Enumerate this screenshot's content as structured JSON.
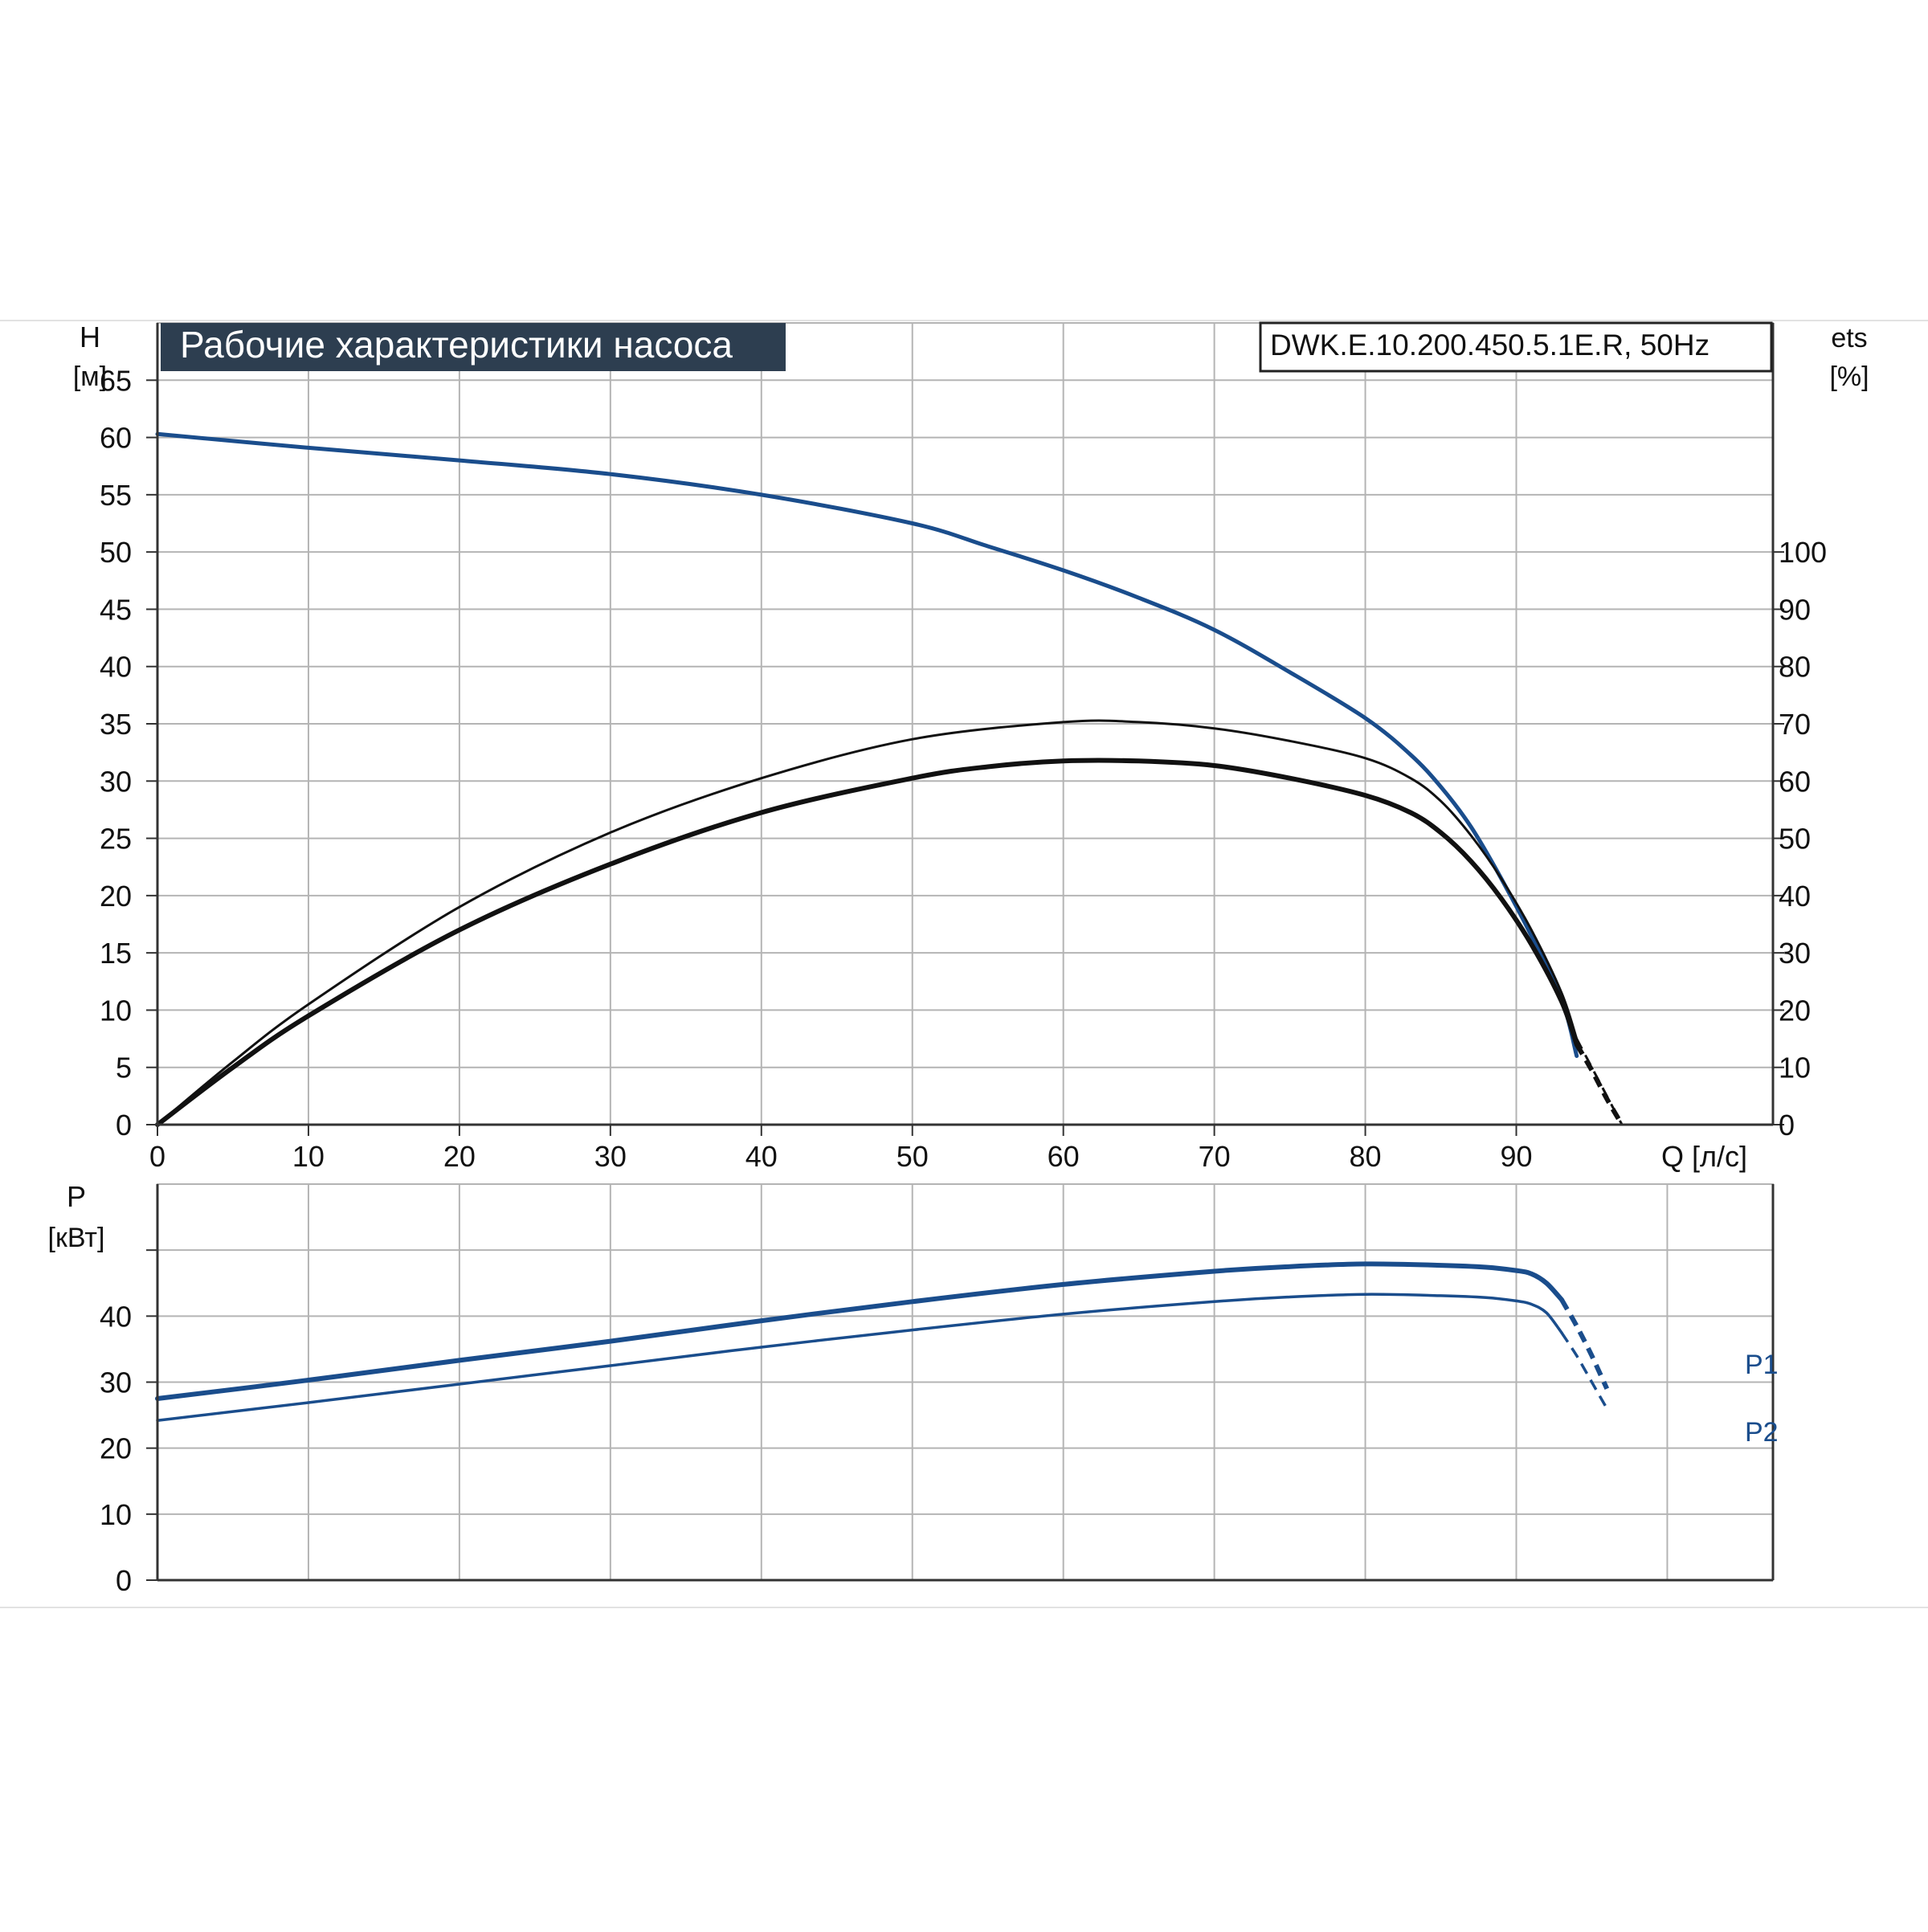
{
  "title": "Рабочие характеристики насоса",
  "model": "DWK.E.10.200.450.5.1E.R, 50Hz",
  "colors": {
    "blue": "#1a4d8c",
    "black": "#111111",
    "grid": "#b4b4b4",
    "title_bg": "#2d3e50",
    "title_text": "#ffffff",
    "hline": "#dddddd"
  },
  "chart_data": [
    {
      "type": "line",
      "name": "head-efficiency",
      "x_label": "Q [л/с]",
      "x_ticks": [
        0,
        10,
        20,
        30,
        40,
        50,
        60,
        70,
        80,
        90
      ],
      "xlim": [
        0,
        107
      ],
      "y_left": {
        "label_line1": "H",
        "label_line2": "[м]",
        "range": [
          0,
          70
        ],
        "ticks": [
          0,
          5,
          10,
          15,
          20,
          25,
          30,
          35,
          40,
          45,
          50,
          55,
          60,
          65
        ]
      },
      "y_right": {
        "label_line1": "ets",
        "label_line2": "[%]",
        "range": [
          0,
          140
        ],
        "ticks": [
          0,
          10,
          20,
          30,
          40,
          50,
          60,
          70,
          80,
          90,
          100
        ]
      },
      "grid": true,
      "series": [
        {
          "axis": "left",
          "color": "#1a4d8c",
          "width": 5,
          "x": [
            0,
            10,
            20,
            30,
            40,
            50,
            55,
            60,
            65,
            70,
            75,
            80,
            83,
            85,
            87,
            89,
            91,
            93,
            94
          ],
          "y": [
            60.3,
            59.1,
            58.0,
            56.8,
            55.0,
            52.5,
            50.5,
            48.4,
            46.0,
            43.2,
            39.5,
            35.5,
            32.3,
            29.5,
            26.0,
            21.5,
            16.5,
            11.0,
            6.0
          ],
          "dashed_x": [],
          "dashed_y": []
        },
        {
          "axis": "right",
          "color": "#111111",
          "width": 3,
          "x": [
            0,
            5,
            10,
            20,
            30,
            40,
            50,
            60,
            65,
            70,
            75,
            80,
            83,
            85,
            87,
            89,
            91,
            93,
            94
          ],
          "y": [
            0,
            11,
            21,
            38,
            51,
            60.5,
            67.3,
            70.3,
            70.3,
            69.2,
            67.0,
            64.0,
            60.5,
            56.5,
            50.5,
            43.0,
            34.0,
            23.0,
            15.0
          ],
          "dashed_x": [
            94,
            95,
            96,
            97
          ],
          "dashed_y": [
            15,
            10,
            5,
            0
          ]
        },
        {
          "axis": "right",
          "color": "#111111",
          "width": 6,
          "x": [
            0,
            5,
            10,
            20,
            30,
            40,
            50,
            55,
            60,
            65,
            70,
            75,
            80,
            83,
            85,
            87,
            89,
            91,
            93,
            94
          ],
          "y": [
            0,
            10,
            19,
            34,
            45.5,
            54.5,
            60.5,
            62.5,
            63.5,
            63.5,
            62.7,
            60.5,
            57.5,
            54.5,
            51.0,
            46.0,
            39.5,
            31.5,
            21.5,
            14.0
          ],
          "dashed_x": [
            94,
            95,
            96,
            97
          ],
          "dashed_y": [
            14,
            9.5,
            4.5,
            0
          ]
        }
      ]
    },
    {
      "type": "line",
      "name": "power",
      "y_left": {
        "label_line1": "P",
        "label_line2": "[кВт]",
        "range": [
          0,
          60
        ],
        "ticks": [
          0,
          10,
          20,
          30,
          40,
          50
        ],
        "labels": [
          "0",
          "10",
          "20",
          "30",
          "40",
          ""
        ]
      },
      "xlim": [
        0,
        107
      ],
      "x_ticks": [
        0,
        10,
        20,
        30,
        40,
        50,
        60,
        70,
        80,
        90,
        100
      ],
      "grid": true,
      "series": [
        {
          "name": "P1",
          "color": "#1a4d8c",
          "width": 6,
          "x": [
            0,
            10,
            20,
            30,
            40,
            50,
            60,
            70,
            75,
            80,
            85,
            88,
            90,
            91,
            92,
            93
          ],
          "y": [
            27.5,
            30.3,
            33.3,
            36.2,
            39.3,
            42.2,
            44.8,
            46.8,
            47.5,
            47.9,
            47.7,
            47.4,
            46.9,
            46.4,
            45.0,
            42.5
          ],
          "dashed_x": [
            93,
            94,
            95,
            96
          ],
          "dashed_y": [
            42.5,
            38.5,
            34.0,
            29.0
          ]
        },
        {
          "name": "P2",
          "color": "#1a4d8c",
          "width": 3.5,
          "x": [
            0,
            10,
            20,
            30,
            40,
            50,
            60,
            70,
            75,
            80,
            85,
            88,
            90,
            91,
            92,
            93
          ],
          "y": [
            24.2,
            26.9,
            29.7,
            32.5,
            35.3,
            37.9,
            40.3,
            42.2,
            42.9,
            43.3,
            43.1,
            42.8,
            42.3,
            41.8,
            40.5,
            37.5
          ],
          "dashed_x": [
            93,
            94,
            95,
            96
          ],
          "dashed_y": [
            37.5,
            34.0,
            30.0,
            26.0
          ]
        }
      ]
    }
  ]
}
